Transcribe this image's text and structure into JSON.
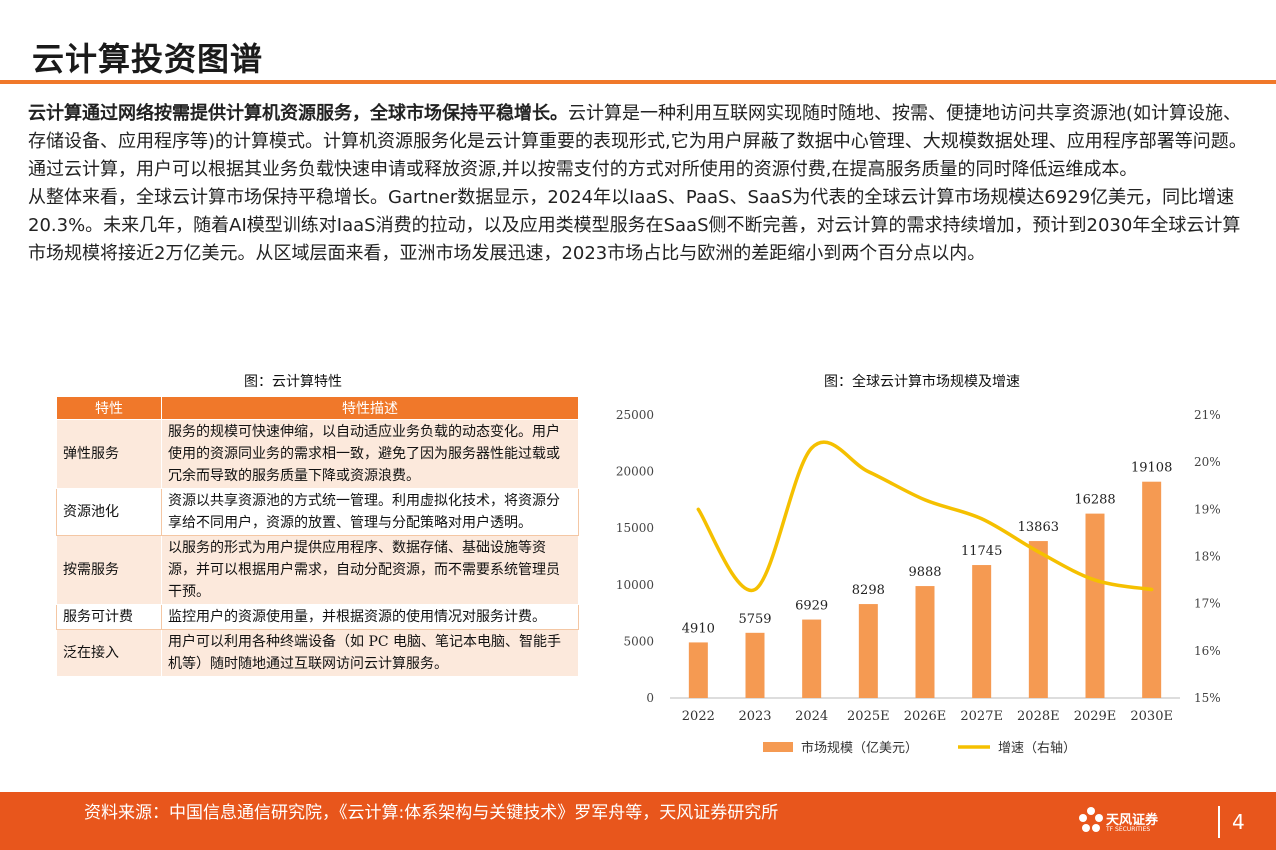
{
  "header": {
    "title": "云计算投资图谱"
  },
  "intro": {
    "lead_bold": "云计算通过网络按需提供计算机资源服务，全球市场保持平稳增长。",
    "lead_rest": "云计算是一种利用互联网实现随时随地、按需、便捷地访问共享资源池(如计算设施、存储设备、应用程序等)的计算模式。计算机资源服务化是云计算重要的表现形式,它为用户屏蔽了数据中心管理、大规模数据处理、应用程序部署等问题。通过云计算，用户可以根据其业务负载快速申请或释放资源,并以按需支付的方式对所使用的资源付费,在提高服务质量的同时降低运维成本。",
    "para2": "从整体来看，全球云计算市场保持平稳增长。Gartner数据显示，2024年以IaaS、PaaS、SaaS为代表的全球云计算市场规模达6929亿美元，同比增速20.3%。未来几年，随着AI模型训练对IaaS消费的拉动，以及应用类模型服务在SaaS侧不断完善，对云计算的需求持续增加，预计到2030年全球云计算市场规模将接近2万亿美元。从区域层面来看，亚洲市场发展迅速，2023市场占比与欧洲的差距缩小到两个百分点以内。"
  },
  "table_section": {
    "caption": "图：云计算特性",
    "headers": [
      "特性",
      "特性描述"
    ],
    "rows": [
      {
        "name": "弹性服务",
        "desc": "服务的规模可快速伸缩，以自动适应业务负载的动态变化。用户使用的资源同业务的需求相一致，避免了因为服务器性能过载或冗余而导致的服务质量下降或资源浪费。"
      },
      {
        "name": "资源池化",
        "desc": "资源以共享资源池的方式统一管理。利用虚拟化技术，将资源分享给不同用户，资源的放置、管理与分配策略对用户透明。"
      },
      {
        "name": "按需服务",
        "desc": "以服务的形式为用户提供应用程序、数据存储、基础设施等资源，并可以根据用户需求，自动分配资源，而不需要系统管理员干预。"
      },
      {
        "name": "服务可计费",
        "desc": "监控用户的资源使用量，并根据资源的使用情况对服务计费。"
      },
      {
        "name": "泛在接入",
        "desc": "用户可以利用各种终端设备（如 PC 电脑、笔记本电脑、智能手机等）随时随地通过互联网访问云计算服务。"
      }
    ]
  },
  "chart_section": {
    "caption": "图：全球云计算市场规模及增速"
  },
  "chart_data": {
    "type": "bar",
    "categories": [
      "2022",
      "2023",
      "2024",
      "2025E",
      "2026E",
      "2027E",
      "2028E",
      "2029E",
      "2030E"
    ],
    "series": [
      {
        "name": "市场规模（亿美元）",
        "type": "bar",
        "axis": "left",
        "color": "#f59a52",
        "values": [
          4910,
          5759,
          6929,
          8298,
          9888,
          11745,
          13863,
          16288,
          19108
        ]
      },
      {
        "name": "增速（右轴）",
        "type": "line",
        "axis": "right",
        "color": "#f5c000",
        "values": [
          19.0,
          17.3,
          20.3,
          19.8,
          19.2,
          18.8,
          18.1,
          17.5,
          17.3
        ]
      }
    ],
    "ylim_left": [
      0,
      25000
    ],
    "yticks_left": [
      "0",
      "5000",
      "10000",
      "15000",
      "20000",
      "25000"
    ],
    "ylim_right": [
      15,
      21
    ],
    "yticks_right": [
      "15%",
      "16%",
      "17%",
      "18%",
      "19%",
      "20%",
      "21%"
    ],
    "grid": false,
    "legend_position": "bottom"
  },
  "footer": {
    "source": "资料来源：中国信息通信研究院，《云计算:体系架构与关键技术》罗军舟等，天风证券研究所",
    "logo_cn": "天风证券",
    "logo_en": "TF SECURITIES",
    "page_number": "4"
  }
}
